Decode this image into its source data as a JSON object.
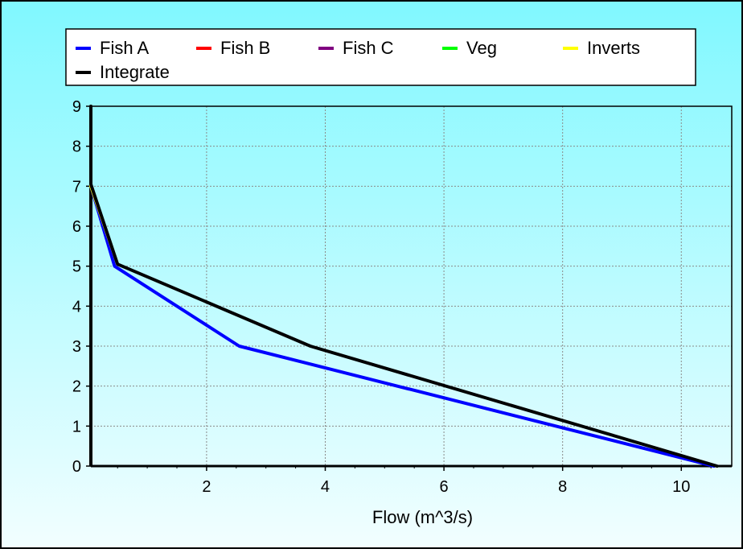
{
  "chart_data": {
    "type": "line",
    "xlabel": "Flow  (m^3/s)",
    "ylabel": "",
    "xlim": [
      0.05,
      10.85
    ],
    "ylim": [
      0,
      9
    ],
    "x_ticks": [
      2,
      4,
      6,
      8,
      10
    ],
    "y_ticks": [
      0,
      1,
      2,
      3,
      4,
      5,
      6,
      7,
      8,
      9
    ],
    "grid": true,
    "legend_position": "top",
    "series": [
      {
        "name": "Fish A",
        "color": "#0000ff",
        "points": [
          [
            0.05,
            9
          ],
          [
            0.05,
            7
          ],
          [
            0.45,
            5
          ],
          [
            2.55,
            3
          ],
          [
            10.55,
            0
          ]
        ]
      },
      {
        "name": "Fish B",
        "color": "#ff0000",
        "points": []
      },
      {
        "name": "Fish C",
        "color": "#800080",
        "points": []
      },
      {
        "name": "Veg",
        "color": "#00ff00",
        "points": []
      },
      {
        "name": "Inverts",
        "color": "#ffff00",
        "points": [
          [
            0.05,
            9
          ],
          [
            0.05,
            7
          ],
          [
            0.5,
            5.05
          ]
        ]
      },
      {
        "name": "Integrate",
        "color": "#000000",
        "points": [
          [
            0.05,
            9
          ],
          [
            0.05,
            7.05
          ],
          [
            0.5,
            5.05
          ],
          [
            3.75,
            3.0
          ],
          [
            10.6,
            0
          ]
        ]
      }
    ]
  }
}
